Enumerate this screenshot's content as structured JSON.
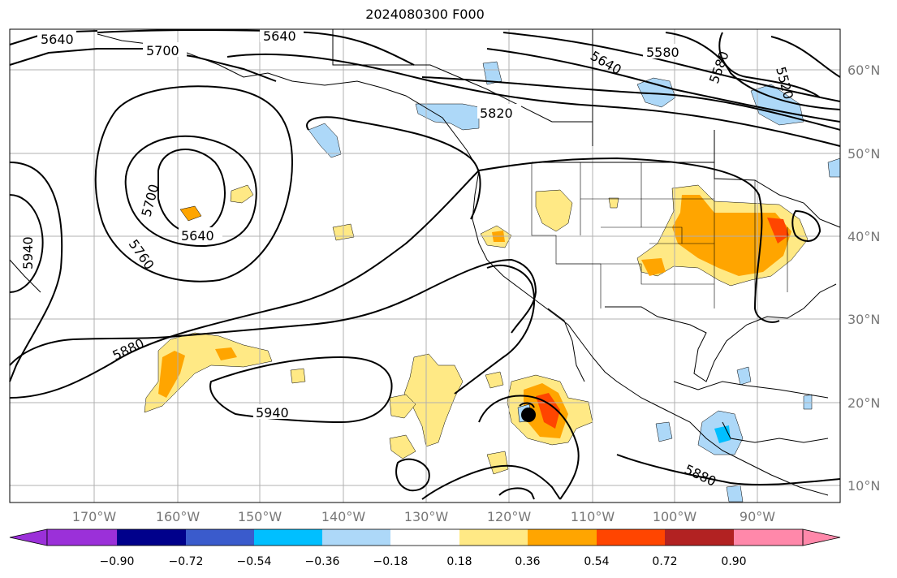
{
  "title": "2024080300 F000",
  "map": {
    "lon_labels": [
      "170°W",
      "160°W",
      "150°W",
      "140°W",
      "130°W",
      "120°W",
      "110°W",
      "100°W",
      "90°W"
    ],
    "lat_labels": [
      "60°N",
      "50°N",
      "40°N",
      "30°N",
      "20°N",
      "10°N"
    ],
    "contour_labels": [
      {
        "text": "5640",
        "id": "c1"
      },
      {
        "text": "5700",
        "id": "c2"
      },
      {
        "text": "5640",
        "id": "c3"
      },
      {
        "text": "5640",
        "id": "c4"
      },
      {
        "text": "5580",
        "id": "c5"
      },
      {
        "text": "5580",
        "id": "c6"
      },
      {
        "text": "5520",
        "id": "c7"
      },
      {
        "text": "5820",
        "id": "c8"
      },
      {
        "text": "5700",
        "id": "c9"
      },
      {
        "text": "5640",
        "id": "c10"
      },
      {
        "text": "5760",
        "id": "c11"
      },
      {
        "text": "5940",
        "id": "c12"
      },
      {
        "text": "5880",
        "id": "c13"
      },
      {
        "text": "5940",
        "id": "c14"
      },
      {
        "text": "5880",
        "id": "c15"
      }
    ],
    "storm_marker": "black-circle",
    "colors": {
      "fill_yellow": "#ffe985",
      "fill_orange": "#ffa500",
      "fill_redorange": "#ff4500",
      "fill_lightblue": "#add8f8",
      "fill_cyan": "#00bfff",
      "grid": "#b0b0b0",
      "land_line": "#000000"
    }
  },
  "colorbar": {
    "tick_labels": [
      "−0.90",
      "−0.72",
      "−0.54",
      "−0.36",
      "−0.18",
      "0.18",
      "0.36",
      "0.54",
      "0.72",
      "0.90"
    ],
    "segments": [
      "#9b30d9",
      "#00008b",
      "#3a5bcc",
      "#00bfff",
      "#add8f8",
      "#ffffff",
      "#ffe985",
      "#ffa500",
      "#ff4500",
      "#b22222",
      "#ff88aa"
    ]
  }
}
